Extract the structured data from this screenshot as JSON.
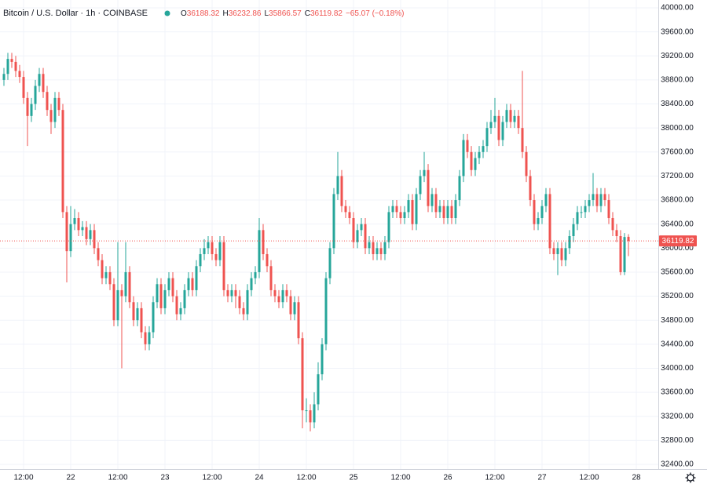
{
  "chart_data": {
    "type": "candlestick",
    "title": "Bitcoin / U.S. Dollar · 1h · COINBASE",
    "legend_labels": [
      "O",
      "H",
      "L",
      "C"
    ],
    "change_label": "−65.07 (−0.18%)",
    "up_color": "#26a69a",
    "down_color": "#ef5350",
    "grid": true,
    "ylim": [
      32400,
      40000
    ],
    "yticks": [
      {
        "value": 32400,
        "label": "32400.00"
      },
      {
        "value": 32800,
        "label": "32800.00"
      },
      {
        "value": 33200,
        "label": "33200.00"
      },
      {
        "value": 33600,
        "label": "33600.00"
      },
      {
        "value": 34000,
        "label": "34000.00"
      },
      {
        "value": 34400,
        "label": "34400.00"
      },
      {
        "value": 34800,
        "label": "34800.00"
      },
      {
        "value": 35200,
        "label": "35200.00"
      },
      {
        "value": 35600,
        "label": "35600.00"
      },
      {
        "value": 36000,
        "label": "36000.00"
      },
      {
        "value": 36400,
        "label": "36400.00"
      },
      {
        "value": 36800,
        "label": "36800.00"
      },
      {
        "value": 37200,
        "label": "37200.00"
      },
      {
        "value": 37600,
        "label": "37600.00"
      },
      {
        "value": 38000,
        "label": "38000.00"
      },
      {
        "value": 38400,
        "label": "38400.00"
      },
      {
        "value": 38800,
        "label": "38800.00"
      },
      {
        "value": 39200,
        "label": "39200.00"
      },
      {
        "value": 39600,
        "label": "39600.00"
      },
      {
        "value": 40000,
        "label": "40000.00"
      }
    ],
    "categories": [
      null,
      null,
      null,
      null,
      null,
      "12:00",
      null,
      null,
      null,
      null,
      null,
      null,
      null,
      null,
      null,
      null,
      null,
      "22",
      null,
      null,
      null,
      null,
      null,
      null,
      null,
      null,
      null,
      null,
      null,
      "12:00",
      null,
      null,
      null,
      null,
      null,
      null,
      null,
      null,
      null,
      null,
      null,
      "23",
      null,
      null,
      null,
      null,
      null,
      null,
      null,
      null,
      null,
      null,
      null,
      "12:00",
      null,
      null,
      null,
      null,
      null,
      null,
      null,
      null,
      null,
      null,
      null,
      "24",
      null,
      null,
      null,
      null,
      null,
      null,
      null,
      null,
      null,
      null,
      null,
      "12:00",
      null,
      null,
      null,
      null,
      null,
      null,
      null,
      null,
      null,
      null,
      null,
      "25",
      null,
      null,
      null,
      null,
      null,
      null,
      null,
      null,
      null,
      null,
      null,
      "12:00",
      null,
      null,
      null,
      null,
      null,
      null,
      null,
      null,
      null,
      null,
      null,
      "26",
      null,
      null,
      null,
      null,
      null,
      null,
      null,
      null,
      null,
      null,
      null,
      "12:00",
      null,
      null,
      null,
      null,
      null,
      null,
      null,
      null,
      null,
      null,
      null,
      "27",
      null,
      null,
      null,
      null,
      null,
      null,
      null,
      null,
      null,
      null,
      null,
      "12:00",
      null,
      null,
      null,
      null,
      null,
      null,
      null,
      null,
      null,
      null,
      null,
      "28"
    ],
    "ohlc": [
      [
        38800,
        39000,
        38700,
        38900
      ],
      [
        38900,
        39250,
        38800,
        39150
      ],
      [
        39150,
        39250,
        39000,
        39100
      ],
      [
        39100,
        39200,
        38850,
        38950
      ],
      [
        38950,
        39050,
        38750,
        38850
      ],
      [
        38850,
        38950,
        38400,
        38500
      ],
      [
        38500,
        38600,
        37700,
        38200
      ],
      [
        38200,
        38500,
        38100,
        38400
      ],
      [
        38400,
        38800,
        38300,
        38700
      ],
      [
        38700,
        39000,
        38600,
        38900
      ],
      [
        38900,
        39000,
        38500,
        38600
      ],
      [
        38600,
        38700,
        38200,
        38300
      ],
      [
        38300,
        38400,
        37900,
        38100
      ],
      [
        38100,
        38600,
        38000,
        38500
      ],
      [
        38500,
        38600,
        38200,
        38300
      ],
      [
        38300,
        38400,
        36500,
        36600
      ],
      [
        36600,
        36700,
        35430,
        35950
      ],
      [
        35950,
        36700,
        35850,
        36400
      ],
      [
        36400,
        36650,
        36300,
        36500
      ],
      [
        36500,
        36600,
        36200,
        36300
      ],
      [
        36300,
        36450,
        36200,
        36350
      ],
      [
        36350,
        36450,
        36050,
        36150
      ],
      [
        36150,
        36400,
        36050,
        36300
      ],
      [
        36300,
        36400,
        35900,
        36000
      ],
      [
        36000,
        36100,
        35700,
        35800
      ],
      [
        35800,
        35900,
        35400,
        35500
      ],
      [
        35500,
        35700,
        35400,
        35600
      ],
      [
        35600,
        35700,
        35300,
        35400
      ],
      [
        35400,
        35500,
        34700,
        34800
      ],
      [
        34800,
        36100,
        34700,
        35300
      ],
      [
        35300,
        35400,
        34000,
        35200
      ],
      [
        35200,
        36100,
        35100,
        35600
      ],
      [
        35600,
        35700,
        35000,
        35100
      ],
      [
        35100,
        35200,
        34700,
        34800
      ],
      [
        34800,
        35100,
        34700,
        35000
      ],
      [
        35000,
        35100,
        34500,
        34600
      ],
      [
        34600,
        34700,
        34300,
        34400
      ],
      [
        34400,
        34700,
        34300,
        34600
      ],
      [
        34600,
        35200,
        34500,
        35100
      ],
      [
        35100,
        35500,
        35000,
        35400
      ],
      [
        35400,
        35500,
        34900,
        35000
      ],
      [
        35000,
        35400,
        34900,
        35300
      ],
      [
        35300,
        35600,
        35200,
        35500
      ],
      [
        35500,
        35600,
        35100,
        35200
      ],
      [
        35200,
        35300,
        34800,
        34900
      ],
      [
        34900,
        35100,
        34800,
        35000
      ],
      [
        35000,
        35400,
        34900,
        35300
      ],
      [
        35300,
        35600,
        35200,
        35500
      ],
      [
        35500,
        35600,
        35200,
        35300
      ],
      [
        35300,
        35800,
        35200,
        35700
      ],
      [
        35700,
        36000,
        35600,
        35900
      ],
      [
        35900,
        36150,
        35800,
        36000
      ],
      [
        36000,
        36200,
        35900,
        36100
      ],
      [
        36100,
        36200,
        35800,
        35900
      ],
      [
        35900,
        36000,
        35700,
        35800
      ],
      [
        35800,
        36200,
        35700,
        36100
      ],
      [
        36100,
        36200,
        35200,
        35300
      ],
      [
        35300,
        35400,
        35100,
        35200
      ],
      [
        35200,
        35400,
        35100,
        35300
      ],
      [
        35300,
        35400,
        35000,
        35200
      ],
      [
        35200,
        35300,
        34900,
        35000
      ],
      [
        35000,
        35100,
        34800,
        34900
      ],
      [
        34900,
        35400,
        34800,
        35300
      ],
      [
        35300,
        35600,
        35200,
        35500
      ],
      [
        35500,
        35700,
        35400,
        35600
      ],
      [
        35600,
        36500,
        35500,
        36300
      ],
      [
        36300,
        36400,
        35800,
        35900
      ],
      [
        35900,
        36000,
        35600,
        35700
      ],
      [
        35700,
        35800,
        35200,
        35300
      ],
      [
        35300,
        35400,
        35100,
        35200
      ],
      [
        35200,
        35300,
        35000,
        35100
      ],
      [
        35100,
        35400,
        35000,
        35300
      ],
      [
        35300,
        35400,
        35100,
        35200
      ],
      [
        35200,
        35300,
        34800,
        34900
      ],
      [
        34900,
        35200,
        34800,
        35100
      ],
      [
        35100,
        35200,
        34400,
        34500
      ],
      [
        34500,
        34600,
        33000,
        33300
      ],
      [
        33300,
        33500,
        33100,
        33300
      ],
      [
        33300,
        33400,
        32950,
        33100
      ],
      [
        33100,
        33600,
        33000,
        33400
      ],
      [
        33400,
        34100,
        33300,
        33900
      ],
      [
        33900,
        34500,
        33800,
        34400
      ],
      [
        34400,
        35600,
        34300,
        35500
      ],
      [
        35500,
        36100,
        35400,
        36000
      ],
      [
        36000,
        37000,
        35900,
        36900
      ],
      [
        36900,
        37600,
        36800,
        37200
      ],
      [
        37200,
        37300,
        36600,
        36700
      ],
      [
        36700,
        36800,
        36500,
        36600
      ],
      [
        36600,
        36700,
        36400,
        36500
      ],
      [
        36500,
        36600,
        36000,
        36100
      ],
      [
        36100,
        36400,
        36000,
        36300
      ],
      [
        36300,
        36500,
        36200,
        36400
      ],
      [
        36400,
        36500,
        35900,
        36000
      ],
      [
        36000,
        36200,
        35900,
        36100
      ],
      [
        36100,
        36200,
        35800,
        35900
      ],
      [
        35900,
        36100,
        35800,
        36000
      ],
      [
        36000,
        36100,
        35800,
        35900
      ],
      [
        35900,
        36200,
        35800,
        36100
      ],
      [
        36100,
        36700,
        36000,
        36600
      ],
      [
        36600,
        36800,
        36500,
        36700
      ],
      [
        36700,
        36800,
        36500,
        36600
      ],
      [
        36600,
        36700,
        36400,
        36500
      ],
      [
        36500,
        36700,
        36400,
        36600
      ],
      [
        36600,
        36900,
        36500,
        36800
      ],
      [
        36800,
        36900,
        36300,
        36400
      ],
      [
        36400,
        37000,
        36300,
        36900
      ],
      [
        36900,
        37300,
        36800,
        37200
      ],
      [
        37200,
        37600,
        37100,
        37300
      ],
      [
        37300,
        37400,
        36600,
        36700
      ],
      [
        36700,
        37000,
        36600,
        36900
      ],
      [
        36900,
        37000,
        36500,
        36600
      ],
      [
        36600,
        36800,
        36500,
        36700
      ],
      [
        36700,
        36800,
        36400,
        36500
      ],
      [
        36500,
        36800,
        36400,
        36700
      ],
      [
        36700,
        36800,
        36400,
        36500
      ],
      [
        36500,
        36900,
        36400,
        36800
      ],
      [
        36800,
        37300,
        36700,
        37200
      ],
      [
        37200,
        37900,
        37100,
        37800
      ],
      [
        37800,
        37900,
        37500,
        37600
      ],
      [
        37600,
        37700,
        37200,
        37300
      ],
      [
        37300,
        37600,
        37200,
        37500
      ],
      [
        37500,
        37700,
        37400,
        37600
      ],
      [
        37600,
        37800,
        37500,
        37700
      ],
      [
        37700,
        38100,
        37600,
        38000
      ],
      [
        38000,
        38300,
        37900,
        38100
      ],
      [
        38100,
        38500,
        38000,
        38200
      ],
      [
        38200,
        38300,
        37700,
        37800
      ],
      [
        37800,
        38200,
        37700,
        38100
      ],
      [
        38100,
        38400,
        38000,
        38300
      ],
      [
        38300,
        38400,
        38000,
        38100
      ],
      [
        38100,
        38300,
        38000,
        38200
      ],
      [
        38200,
        38300,
        37900,
        38000
      ],
      [
        38000,
        38950,
        37500,
        37600
      ],
      [
        37600,
        37700,
        37100,
        37200
      ],
      [
        37200,
        37300,
        36700,
        36800
      ],
      [
        36800,
        36900,
        36300,
        36400
      ],
      [
        36400,
        36600,
        36300,
        36500
      ],
      [
        36500,
        36800,
        36400,
        36700
      ],
      [
        36700,
        37000,
        36600,
        36900
      ],
      [
        36900,
        37000,
        35900,
        36000
      ],
      [
        36000,
        36100,
        35800,
        35900
      ],
      [
        35900,
        36100,
        35550,
        36000
      ],
      [
        36000,
        36100,
        35700,
        35800
      ],
      [
        35800,
        36100,
        35700,
        36000
      ],
      [
        36000,
        36300,
        35900,
        36200
      ],
      [
        36200,
        36500,
        36100,
        36400
      ],
      [
        36400,
        36700,
        36300,
        36600
      ],
      [
        36600,
        36700,
        36500,
        36600
      ],
      [
        36600,
        36800,
        36500,
        36700
      ],
      [
        36700,
        36900,
        36600,
        36800
      ],
      [
        36800,
        37250,
        36700,
        36900
      ],
      [
        36900,
        37000,
        36600,
        36700
      ],
      [
        36700,
        37000,
        36600,
        36900
      ],
      [
        36900,
        37000,
        36700,
        36800
      ],
      [
        36800,
        36900,
        36400,
        36500
      ],
      [
        36500,
        36600,
        36200,
        36300
      ],
      [
        36300,
        36400,
        36100,
        36200
      ],
      [
        36200,
        36300,
        35550,
        35600
      ],
      [
        35600,
        36250,
        35550,
        36184.89
      ],
      [
        36188.32,
        36232.86,
        35866.57,
        36119.82
      ],
      null,
      null
    ]
  }
}
